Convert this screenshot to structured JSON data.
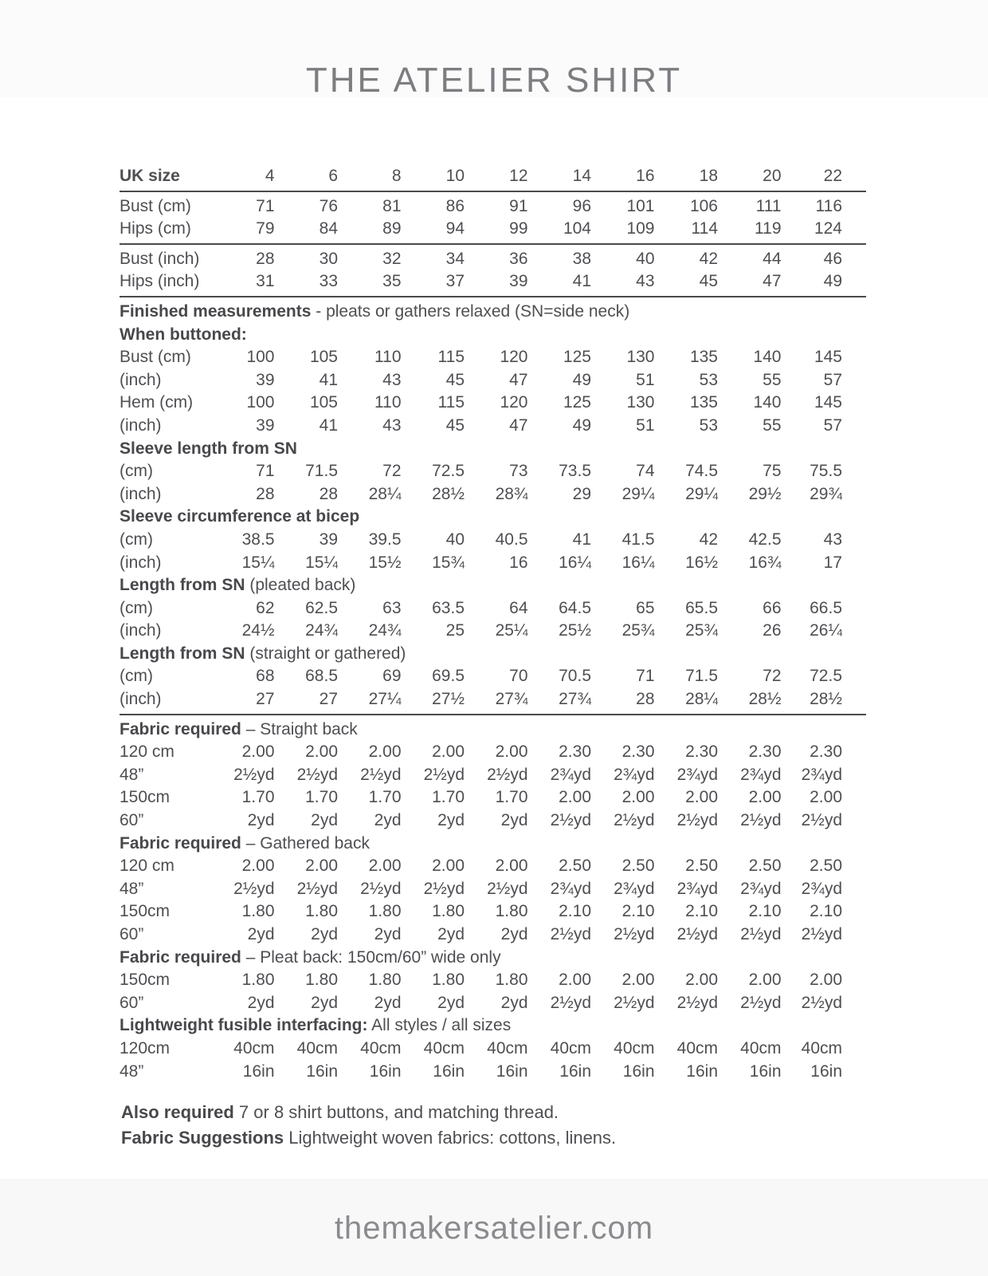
{
  "page": {
    "title": "THE ATELIER SHIRT",
    "footer_url": "themakersatelier.com",
    "colors": {
      "text": "#4f4f53",
      "title": "#7d7d81",
      "rule": "#4a4a4d",
      "footer": "#8b8b8f",
      "top_band": "#fbfbfb",
      "bottom_band": "#f8f8f8"
    }
  },
  "table": {
    "rows": [
      {
        "type": "row",
        "style": "header",
        "label": "UK size",
        "values": [
          "4",
          "6",
          "8",
          "10",
          "12",
          "14",
          "16",
          "18",
          "20",
          "22"
        ]
      },
      {
        "type": "rule"
      },
      {
        "type": "row",
        "label": "Bust (cm)",
        "values": [
          "71",
          "76",
          "81",
          "86",
          "91",
          "96",
          "101",
          "106",
          "111",
          "116"
        ]
      },
      {
        "type": "row",
        "label": "Hips (cm)",
        "values": [
          "79",
          "84",
          "89",
          "94",
          "99",
          "104",
          "109",
          "114",
          "119",
          "124"
        ]
      },
      {
        "type": "rule"
      },
      {
        "type": "row",
        "label": "Bust (inch)",
        "values": [
          "28",
          "30",
          "32",
          "34",
          "36",
          "38",
          "40",
          "42",
          "44",
          "46"
        ]
      },
      {
        "type": "row",
        "label": "Hips (inch)",
        "values": [
          "31",
          "33",
          "35",
          "37",
          "39",
          "41",
          "43",
          "45",
          "47",
          "49"
        ]
      },
      {
        "type": "rule"
      },
      {
        "type": "section",
        "bold": "Finished measurements",
        "rest": " - pleats or gathers relaxed (SN=side neck)"
      },
      {
        "type": "section",
        "bold": "When buttoned:",
        "rest": ""
      },
      {
        "type": "row",
        "label": "Bust (cm)",
        "values": [
          "100",
          "105",
          "110",
          "115",
          "120",
          "125",
          "130",
          "135",
          "140",
          "145"
        ]
      },
      {
        "type": "row",
        "label": "(inch)",
        "values": [
          "39",
          "41",
          "43",
          "45",
          "47",
          "49",
          "51",
          "53",
          "55",
          "57"
        ]
      },
      {
        "type": "row",
        "label": "Hem (cm)",
        "values": [
          "100",
          "105",
          "110",
          "115",
          "120",
          "125",
          "130",
          "135",
          "140",
          "145"
        ]
      },
      {
        "type": "row",
        "label": "(inch)",
        "values": [
          "39",
          "41",
          "43",
          "45",
          "47",
          "49",
          "51",
          "53",
          "55",
          "57"
        ]
      },
      {
        "type": "section",
        "bold": "Sleeve length from SN",
        "rest": ""
      },
      {
        "type": "row",
        "label": "(cm)",
        "values": [
          "71",
          "71.5",
          "72",
          "72.5",
          "73",
          "73.5",
          "74",
          "74.5",
          "75",
          "75.5"
        ]
      },
      {
        "type": "row",
        "label": "(inch)",
        "values": [
          "28",
          "28",
          "28¼",
          "28½",
          "28¾",
          "29",
          "29¼",
          "29¼",
          "29½",
          "29¾"
        ]
      },
      {
        "type": "section",
        "bold": "Sleeve circumference at bicep",
        "rest": ""
      },
      {
        "type": "row",
        "label": "(cm)",
        "values": [
          "38.5",
          "39",
          "39.5",
          "40",
          "40.5",
          "41",
          "41.5",
          "42",
          "42.5",
          "43"
        ]
      },
      {
        "type": "row",
        "label": "(inch)",
        "values": [
          "15¼",
          "15¼",
          "15½",
          "15¾",
          "16",
          "16¼",
          "16¼",
          "16½",
          "16¾",
          "17"
        ]
      },
      {
        "type": "section",
        "bold": "Length from SN",
        "rest": " (pleated back)"
      },
      {
        "type": "row",
        "label": "(cm)",
        "values": [
          "62",
          "62.5",
          "63",
          "63.5",
          "64",
          "64.5",
          "65",
          "65.5",
          "66",
          "66.5"
        ]
      },
      {
        "type": "row",
        "label": "(inch)",
        "values": [
          "24½",
          "24¾",
          "24¾",
          "25",
          "25¼",
          "25½",
          "25¾",
          "25¾",
          "26",
          "26¼"
        ]
      },
      {
        "type": "section",
        "bold": "Length from SN",
        "rest": " (straight or gathered)"
      },
      {
        "type": "row",
        "label": "(cm)",
        "values": [
          "68",
          "68.5",
          "69",
          "69.5",
          "70",
          "70.5",
          "71",
          "71.5",
          "72",
          "72.5"
        ]
      },
      {
        "type": "row",
        "label": "(inch)",
        "values": [
          "27",
          "27",
          "27¼",
          "27½",
          "27¾",
          "27¾",
          "28",
          "28¼",
          "28½",
          "28½"
        ]
      },
      {
        "type": "rule"
      },
      {
        "type": "section",
        "bold": "Fabric required",
        "rest": " – Straight back"
      },
      {
        "type": "row",
        "label": "120 cm",
        "values": [
          "2.00",
          "2.00",
          "2.00",
          "2.00",
          "2.00",
          "2.30",
          "2.30",
          "2.30",
          "2.30",
          "2.30"
        ]
      },
      {
        "type": "row",
        "label": "48”",
        "values": [
          "2½yd",
          "2½yd",
          "2½yd",
          "2½yd",
          "2½yd",
          "2¾yd",
          "2¾yd",
          "2¾yd",
          "2¾yd",
          "2¾yd"
        ]
      },
      {
        "type": "row",
        "label": "150cm",
        "values": [
          "1.70",
          "1.70",
          "1.70",
          "1.70",
          "1.70",
          "2.00",
          "2.00",
          "2.00",
          "2.00",
          "2.00"
        ]
      },
      {
        "type": "row",
        "label": "60”",
        "values": [
          "2yd",
          "2yd",
          "2yd",
          "2yd",
          "2yd",
          "2½yd",
          "2½yd",
          "2½yd",
          "2½yd",
          "2½yd"
        ]
      },
      {
        "type": "section",
        "bold": "Fabric required",
        "rest": " – Gathered back"
      },
      {
        "type": "row",
        "label": "120 cm",
        "values": [
          "2.00",
          "2.00",
          "2.00",
          "2.00",
          "2.00",
          "2.50",
          "2.50",
          "2.50",
          "2.50",
          "2.50"
        ]
      },
      {
        "type": "row",
        "label": "48”",
        "values": [
          "2½yd",
          "2½yd",
          "2½yd",
          "2½yd",
          "2½yd",
          "2¾yd",
          "2¾yd",
          "2¾yd",
          "2¾yd",
          "2¾yd"
        ]
      },
      {
        "type": "row",
        "label": "150cm",
        "values": [
          "1.80",
          "1.80",
          "1.80",
          "1.80",
          "1.80",
          "2.10",
          "2.10",
          "2.10",
          "2.10",
          "2.10"
        ]
      },
      {
        "type": "row",
        "label": "60”",
        "values": [
          "2yd",
          "2yd",
          "2yd",
          "2yd",
          "2yd",
          "2½yd",
          "2½yd",
          "2½yd",
          "2½yd",
          "2½yd"
        ]
      },
      {
        "type": "section",
        "bold": "Fabric required",
        "rest": " – Pleat back: 150cm/60” wide only"
      },
      {
        "type": "row",
        "label": "150cm",
        "values": [
          "1.80",
          "1.80",
          "1.80",
          "1.80",
          "1.80",
          "2.00",
          "2.00",
          "2.00",
          "2.00",
          "2.00"
        ]
      },
      {
        "type": "row",
        "label": "60”",
        "values": [
          "2yd",
          "2yd",
          "2yd",
          "2yd",
          "2yd",
          "2½yd",
          "2½yd",
          "2½yd",
          "2½yd",
          "2½yd"
        ]
      },
      {
        "type": "section",
        "bold": "Lightweight fusible interfacing:",
        "rest": " All styles / all sizes"
      },
      {
        "type": "row",
        "label": "120cm",
        "values": [
          "40cm",
          "40cm",
          "40cm",
          "40cm",
          "40cm",
          "40cm",
          "40cm",
          "40cm",
          "40cm",
          "40cm"
        ]
      },
      {
        "type": "row",
        "label": "48”",
        "values": [
          "16in",
          "16in",
          "16in",
          "16in",
          "16in",
          "16in",
          "16in",
          "16in",
          "16in",
          "16in"
        ]
      }
    ]
  },
  "notes": [
    {
      "bold": "Also required",
      "rest": " 7 or 8 shirt buttons, and matching thread."
    },
    {
      "bold": "Fabric Suggestions",
      "rest": " Lightweight woven fabrics: cottons, linens."
    }
  ]
}
